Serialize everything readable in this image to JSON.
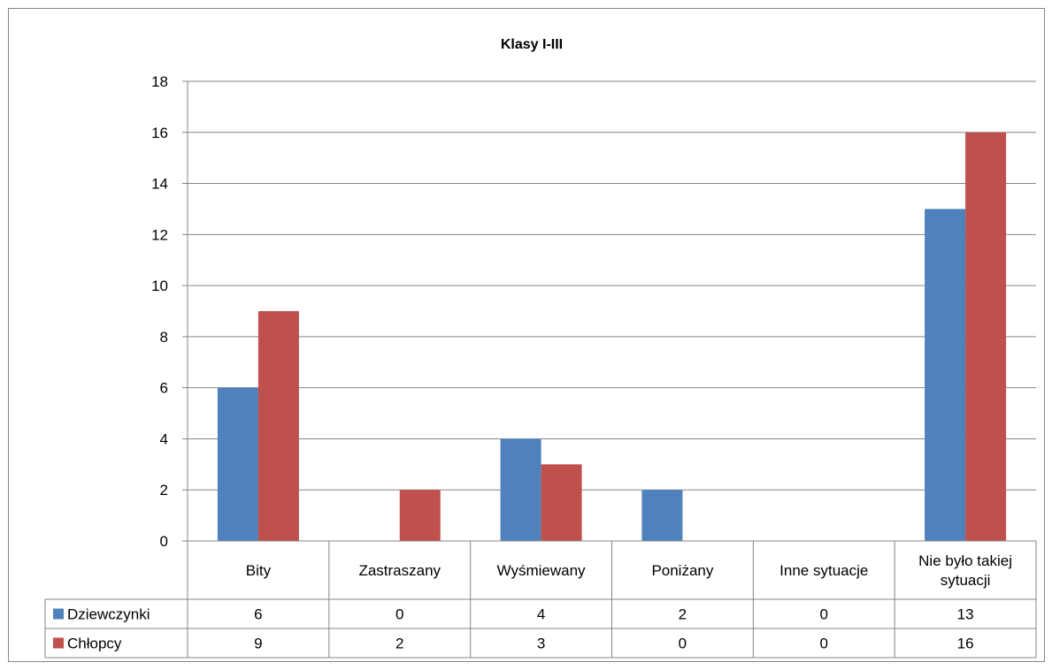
{
  "chart_data": {
    "type": "bar",
    "title": "Klasy I-III",
    "categories": [
      "Bity",
      "Zastraszany",
      "Wyśmiewany",
      "Poniżany",
      "Inne sytuacje",
      [
        "Nie było takiej",
        "sytuacji"
      ]
    ],
    "series": [
      {
        "name": "Dziewczynki",
        "values": [
          6,
          0,
          4,
          2,
          0,
          13
        ],
        "color": "#4F81BD"
      },
      {
        "name": "Chłopcy",
        "values": [
          9,
          2,
          3,
          0,
          0,
          16
        ],
        "color": "#C0504D"
      }
    ],
    "ylim": [
      0,
      18
    ],
    "yticks": [
      0,
      2,
      4,
      6,
      8,
      10,
      12,
      14,
      16,
      18
    ],
    "grid": true,
    "legend": "data-table"
  }
}
